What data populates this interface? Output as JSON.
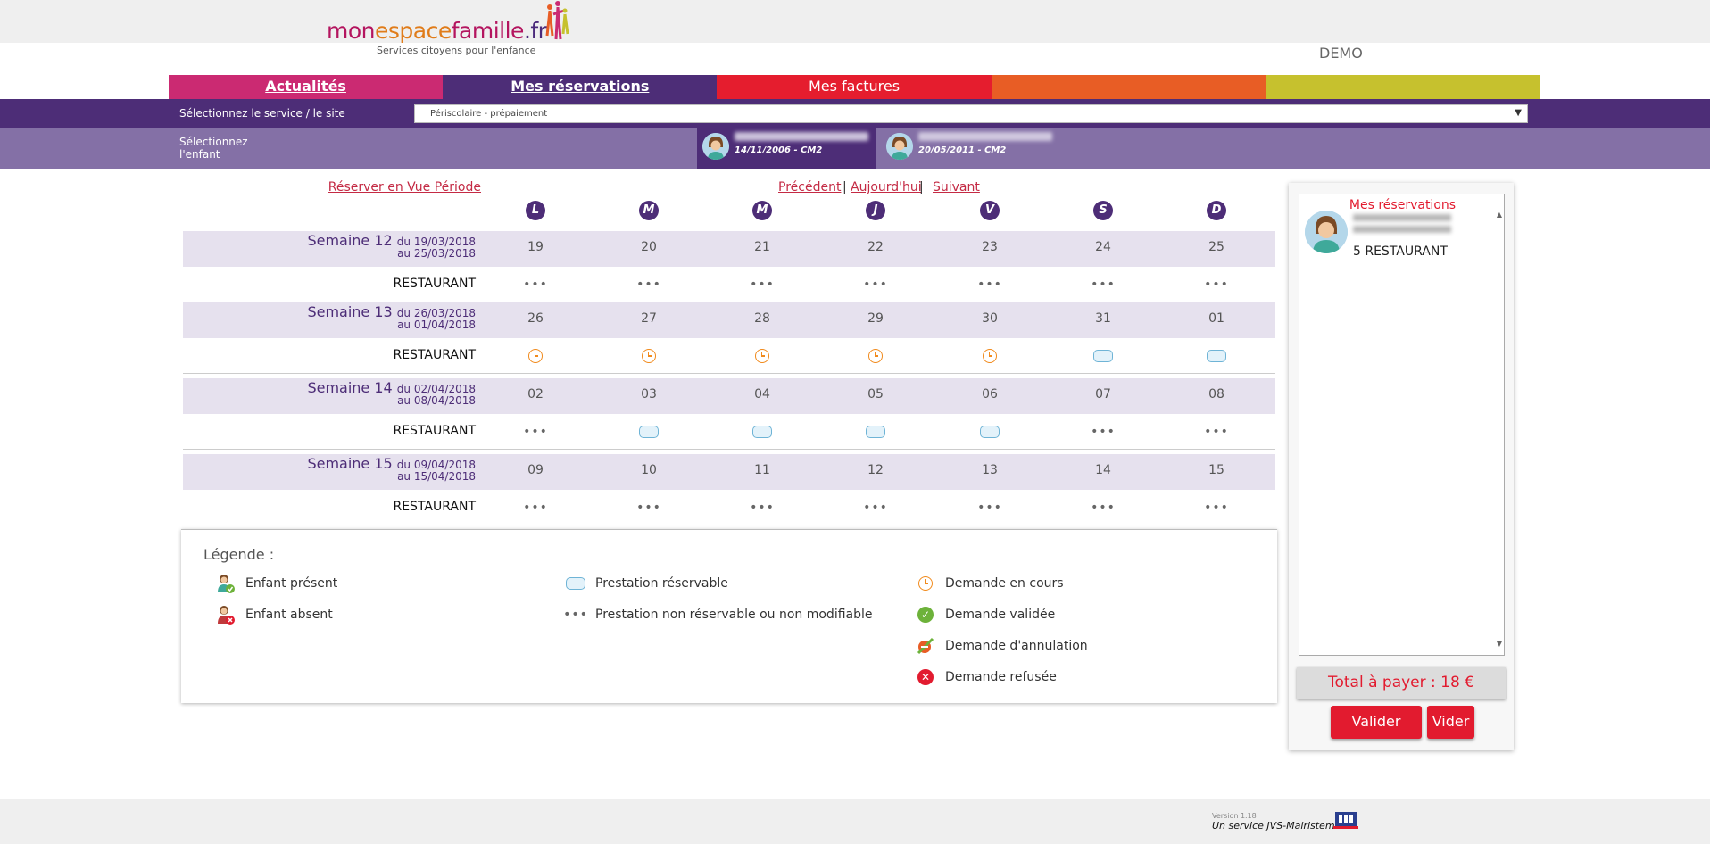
{
  "header": {
    "logo": {
      "part1": "mon",
      "part2": "espace",
      "part3": "famille",
      "part4": ".fr",
      "tagline": "Services citoyens pour l'enfance"
    },
    "demo": "DEMO"
  },
  "tabs": [
    "Actualités",
    "Mes réservations",
    "Mes factures",
    "",
    ""
  ],
  "service": {
    "label": "Sélectionnez le service / le site",
    "selected": "Périscolaire - prépaiement"
  },
  "children": {
    "label_line1": "Sélectionnez",
    "label_line2": "l'enfant",
    "items": [
      {
        "info": "14/11/2006 - CM2"
      },
      {
        "info": "20/05/2011 - CM2"
      }
    ]
  },
  "calendar": {
    "links": {
      "vue_periode": "Réserver en Vue Période",
      "precedent": "Précédent",
      "aujourdhui": "Aujourd'hui",
      "suivant": "Suivant",
      "sep": "|"
    },
    "days": [
      "L",
      "M",
      "M",
      "J",
      "V",
      "S",
      "D"
    ],
    "weeks": [
      {
        "name": "Semaine 12",
        "from": "du 19/03/2018",
        "to": "au 25/03/2018",
        "dates": [
          "19",
          "20",
          "21",
          "22",
          "23",
          "24",
          "25"
        ],
        "service": "RESTAURANT",
        "cells": [
          "dots",
          "dots",
          "dots",
          "dots",
          "dots",
          "dots",
          "dots"
        ]
      },
      {
        "name": "Semaine 13",
        "from": "du 26/03/2018",
        "to": "au 01/04/2018",
        "dates": [
          "26",
          "27",
          "28",
          "29",
          "30",
          "31",
          "01"
        ],
        "service": "RESTAURANT",
        "cells": [
          "clock",
          "clock",
          "clock",
          "clock",
          "clock",
          "pill",
          "pill"
        ]
      },
      {
        "name": "Semaine 14",
        "from": "du 02/04/2018",
        "to": "au 08/04/2018",
        "dates": [
          "02",
          "03",
          "04",
          "05",
          "06",
          "07",
          "08"
        ],
        "service": "RESTAURANT",
        "cells": [
          "dots",
          "pill",
          "pill",
          "pill",
          "pill",
          "dots",
          "dots"
        ]
      },
      {
        "name": "Semaine 15",
        "from": "du 09/04/2018",
        "to": "au 15/04/2018",
        "dates": [
          "09",
          "10",
          "11",
          "12",
          "13",
          "14",
          "15"
        ],
        "service": "RESTAURANT",
        "cells": [
          "dots",
          "dots",
          "dots",
          "dots",
          "dots",
          "dots",
          "dots"
        ]
      }
    ]
  },
  "legend": {
    "title": "Légende :",
    "present": "Enfant présent",
    "absent": "Enfant absent",
    "reservable": "Prestation réservable",
    "non_reservable": "Prestation non réservable ou non modifiable",
    "en_cours": "Demande en cours",
    "validee": "Demande validée",
    "annulation": "Demande d'annulation",
    "refusee": "Demande refusée"
  },
  "reservations": {
    "title": "Mes réservations",
    "count": "5 RESTAURANT",
    "total": "Total à payer : 18 €",
    "valider": "Valider",
    "vider": "Vider"
  },
  "footer": {
    "version": "Version 1.18",
    "service": "Un service JVS-Mairistem"
  },
  "colors": {
    "purple": "#4d2d77",
    "magenta": "#cb2a72",
    "red": "#e51d2e",
    "orange": "#e85d25",
    "olive": "#c6c12e"
  }
}
